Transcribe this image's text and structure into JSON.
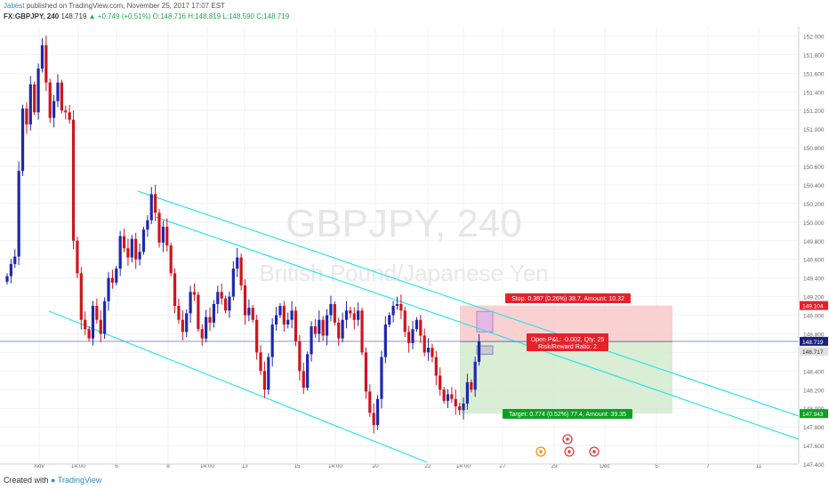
{
  "header": {
    "author": "Jabest",
    "published_text": "published on TradingView.com, November 25, 2017 17:07 EST",
    "symbol": "FX:GBPJPY, 240",
    "last": "148.719",
    "change": "▲ +0.749 (+0.51%)",
    "ohlc": {
      "o": "O:148.716",
      "h": "H:148.819",
      "l": "L:148.590",
      "c": "C:148.719"
    }
  },
  "watermark": {
    "symbol": "GBPJPY, 240",
    "name": "British Pound/Japanese Yen"
  },
  "position": {
    "stop_label": "Stop: 0.387 (0.26%) 38.7, Amount: 10.32",
    "target_label": "Target: 0.774 (0.52%) 77.4, Amount: 39.35",
    "pnl_label": "Open P&L: -0.002, Qty: 25",
    "rr_label": "Risk/Reward Ratio: 2",
    "stop_price": 149.104,
    "entry_price": 148.717,
    "target_price": 147.943,
    "stop_tag": "149.104",
    "entry_tag": "148.717",
    "target_tag": "147.943"
  },
  "last_price_tag": "148.719",
  "footer": {
    "created": "Created with",
    "brand": "TradingView"
  },
  "colors": {
    "up": "#1e27b0",
    "down": "#d0141c",
    "channel": "#2fe3eb",
    "stop_zone": "#f7c6c6",
    "target_zone": "#cfeacb",
    "tag_red": "#e8202a",
    "tag_green": "#0da121",
    "tag_navy": "#1a237e"
  },
  "chart_data": {
    "type": "candlestick",
    "symbol": "GBPJPY",
    "timeframe": "240",
    "y_ticks": [
      152.0,
      151.8,
      151.6,
      151.4,
      151.2,
      151.0,
      150.8,
      150.6,
      150.4,
      150.2,
      150.0,
      149.8,
      149.6,
      149.4,
      149.2,
      149.0,
      148.8,
      148.6,
      148.4,
      148.2,
      148.0,
      147.8,
      147.6,
      147.4
    ],
    "ylim": [
      147.4,
      152.1
    ],
    "x_labels": [
      "Nov",
      "14:00",
      "6",
      "8",
      "14:00",
      "13",
      "15",
      "14:00",
      "20",
      "22",
      "14:00",
      "27",
      "29",
      "Dec",
      "5",
      "7",
      "11"
    ],
    "closes": [
      149.42,
      149.55,
      149.63,
      150.55,
      151.22,
      151.05,
      151.48,
      151.18,
      151.65,
      151.9,
      151.5,
      151.12,
      151.3,
      151.5,
      151.2,
      151.18,
      151.1,
      149.8,
      149.45,
      148.95,
      148.85,
      148.75,
      149.1,
      148.95,
      148.8,
      149.15,
      149.4,
      149.35,
      149.5,
      149.85,
      149.72,
      149.62,
      149.82,
      149.6,
      149.68,
      149.92,
      150.02,
      150.3,
      150.1,
      149.78,
      149.95,
      149.75,
      149.45,
      149.1,
      148.95,
      148.82,
      149.02,
      149.25,
      149.22,
      148.85,
      148.75,
      148.98,
      148.92,
      149.12,
      149.25,
      149.18,
      149.05,
      149.2,
      149.5,
      149.62,
      149.32,
      149.0,
      149.08,
      148.95,
      148.6,
      148.4,
      148.2,
      148.55,
      148.9,
      149.0,
      149.1,
      148.9,
      148.95,
      149.05,
      148.72,
      148.4,
      148.22,
      148.58,
      148.88,
      148.8,
      148.95,
      148.78,
      149.0,
      149.12,
      148.92,
      148.75,
      148.95,
      149.05,
      149.02,
      148.95,
      149.05,
      148.6,
      148.18,
      147.95,
      147.82,
      148.1,
      148.55,
      148.9,
      149.0,
      149.1,
      149.12,
      149.05,
      148.82,
      148.7,
      148.85,
      148.95,
      148.78,
      148.6,
      148.65,
      148.55,
      148.35,
      148.2,
      148.08,
      148.15,
      148.1,
      148.02,
      147.98,
      148.05,
      148.28,
      148.2,
      148.5,
      148.72
    ]
  }
}
